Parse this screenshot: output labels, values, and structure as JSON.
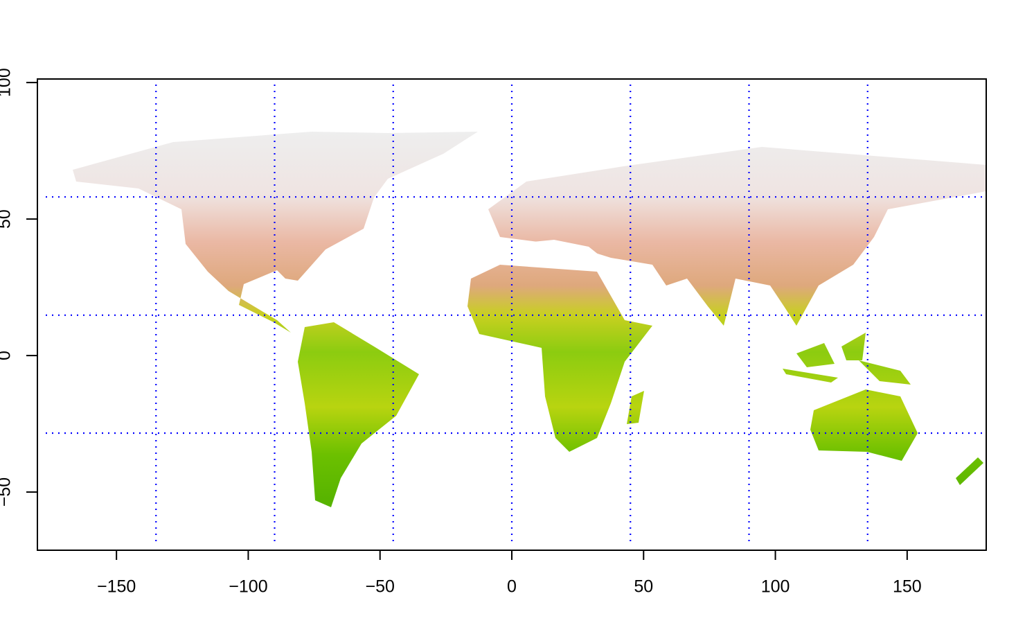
{
  "chart_data": {
    "type": "map",
    "xlim": [
      -180,
      180
    ],
    "ylim": [
      -71.3,
      101.3
    ],
    "xticks": [
      {
        "value": -150,
        "label": "−150"
      },
      {
        "value": -100,
        "label": "−100"
      },
      {
        "value": -50,
        "label": "−50"
      },
      0,
      50,
      100,
      150
    ],
    "yticks": [
      100,
      50,
      0,
      {
        "value": -50,
        "label": "−50"
      }
    ],
    "gridlines": {
      "x": [
        -135,
        -90,
        -45,
        0,
        45,
        90,
        135
      ],
      "y": [
        58.1,
        14.8,
        -28.4
      ]
    },
    "grid_color": "#0000ff"
  }
}
